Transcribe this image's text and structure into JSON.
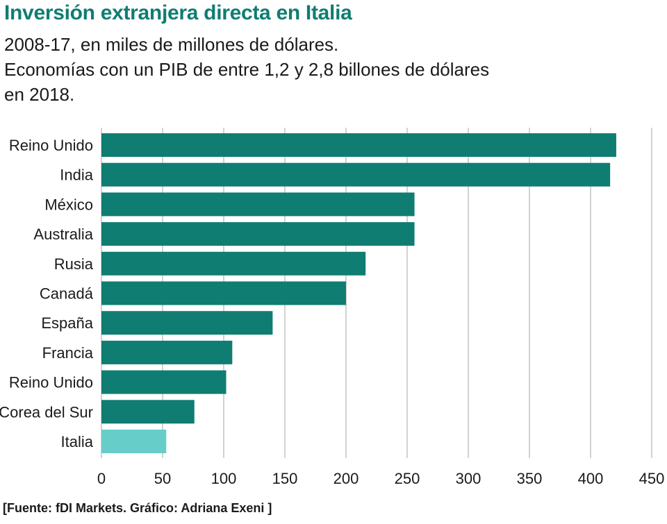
{
  "header": {
    "title": "Inversión extranjera directa en Italia",
    "subtitle": "2008-17, en miles de millones de dólares.\nEconomías con un PIB de entre 1,2 y 2,8 billones de dólares\nen 2018."
  },
  "footer": {
    "source": "[Fuente: fDI Markets. Gráfico: Adriana Exeni ]"
  },
  "colors": {
    "bar": "#0f7d72",
    "highlight": "#66cdc9",
    "grid": "#b3b3b3",
    "title": "#0f7d72"
  },
  "chart_data": {
    "type": "bar",
    "orientation": "horizontal",
    "categories": [
      "Reino Unido",
      "India",
      "México",
      "Australia",
      "Rusia",
      "Canadá",
      "España",
      "Francia",
      "Reino Unido",
      "Corea del Sur",
      "Italia"
    ],
    "values": [
      421,
      416,
      256,
      256,
      216,
      200,
      140,
      107,
      102,
      76,
      53
    ],
    "highlighted": [
      "Italia"
    ],
    "xlim": [
      0,
      450
    ],
    "xticks": [
      0,
      50,
      100,
      150,
      200,
      250,
      300,
      350,
      400,
      450
    ],
    "grid": true,
    "title": "Inversión extranjera directa en Italia",
    "xlabel": "",
    "ylabel": ""
  }
}
